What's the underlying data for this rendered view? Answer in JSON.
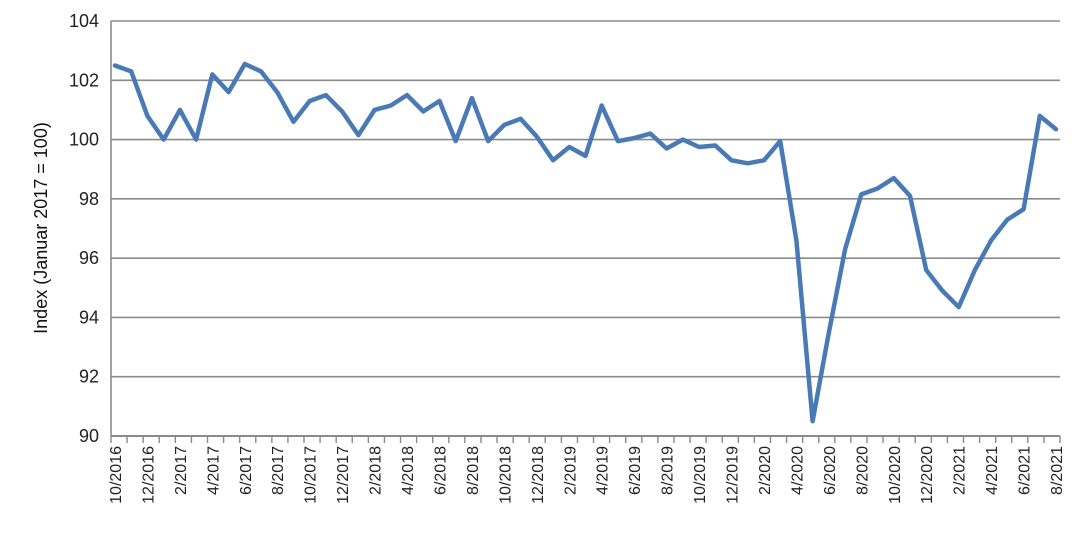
{
  "chart_data": {
    "type": "line",
    "title": "",
    "xlabel": "",
    "ylabel": "Index (Januar 2017 = 100)",
    "ylim": [
      90,
      104
    ],
    "yticks": [
      90,
      92,
      94,
      96,
      98,
      100,
      102,
      104
    ],
    "grid": true,
    "line_color": "#4a7ab5",
    "x": [
      "10/2016",
      "11/2016",
      "12/2016",
      "1/2017",
      "2/2017",
      "3/2017",
      "4/2017",
      "5/2017",
      "6/2017",
      "7/2017",
      "8/2017",
      "9/2017",
      "10/2017",
      "11/2017",
      "12/2017",
      "1/2018",
      "2/2018",
      "3/2018",
      "4/2018",
      "5/2018",
      "6/2018",
      "7/2018",
      "8/2018",
      "9/2018",
      "10/2018",
      "11/2018",
      "12/2018",
      "1/2019",
      "2/2019",
      "3/2019",
      "4/2019",
      "5/2019",
      "6/2019",
      "7/2019",
      "8/2019",
      "9/2019",
      "10/2019",
      "11/2019",
      "12/2019",
      "1/2020",
      "2/2020",
      "3/2020",
      "4/2020",
      "5/2020",
      "6/2020",
      "7/2020",
      "8/2020",
      "9/2020",
      "10/2020",
      "11/2020",
      "12/2020",
      "1/2021",
      "2/2021",
      "3/2021",
      "4/2021",
      "5/2021",
      "6/2021",
      "7/2021",
      "8/2021"
    ],
    "xtick_labels": [
      "10/2016",
      "12/2016",
      "2/2017",
      "4/2017",
      "6/2017",
      "8/2017",
      "10/2017",
      "12/2017",
      "2/2018",
      "4/2018",
      "6/2018",
      "8/2018",
      "10/2018",
      "12/2018",
      "2/2019",
      "4/2019",
      "6/2019",
      "8/2019",
      "10/2019",
      "12/2019",
      "2/2020",
      "4/2020",
      "6/2020",
      "8/2020",
      "10/2020",
      "12/2020",
      "2/2021",
      "4/2021",
      "6/2021",
      "8/2021"
    ],
    "series": [
      {
        "values": [
          102.5,
          102.3,
          100.8,
          100.0,
          101.0,
          100.0,
          102.2,
          101.6,
          102.55,
          102.3,
          101.6,
          100.6,
          101.3,
          101.5,
          100.95,
          100.15,
          101.0,
          101.15,
          101.5,
          100.95,
          101.3,
          99.95,
          101.4,
          99.95,
          100.5,
          100.7,
          100.1,
          99.3,
          99.75,
          99.45,
          101.15,
          99.95,
          100.05,
          100.2,
          99.7,
          100.0,
          99.75,
          99.8,
          99.3,
          99.2,
          99.3,
          99.95,
          96.6,
          90.5,
          93.5,
          96.3,
          98.15,
          98.35,
          98.7,
          98.1,
          95.6,
          94.9,
          94.35,
          95.6,
          96.6,
          97.3,
          97.65,
          100.8,
          100.35
        ]
      }
    ]
  }
}
